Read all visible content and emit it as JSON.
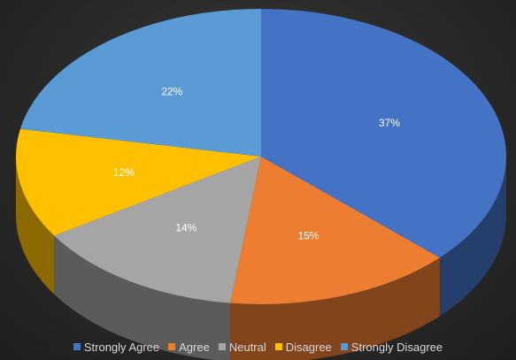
{
  "chart_data": {
    "type": "pie",
    "style": "3d",
    "title": "",
    "categories": [
      "Strongly Agree",
      "Agree",
      "Neutral",
      "Disagree",
      "Strongly Disagree"
    ],
    "values": [
      37,
      15,
      14,
      12,
      22
    ],
    "data_labels": [
      "37%",
      "15%",
      "14%",
      "12%",
      "22%"
    ],
    "colors": [
      "#4472c4",
      "#ed7d31",
      "#a5a5a5",
      "#ffc000",
      "#5b9bd5"
    ],
    "legend_position": "bottom",
    "start_angle_deg": -90,
    "direction": "clockwise"
  },
  "legend": {
    "items": [
      {
        "label": "Strongly Agree",
        "color": "#4472c4"
      },
      {
        "label": "Agree",
        "color": "#ed7d31"
      },
      {
        "label": "Neutral",
        "color": "#a5a5a5"
      },
      {
        "label": "Disagree",
        "color": "#ffc000"
      },
      {
        "label": "Strongly Disagree",
        "color": "#5b9bd5"
      }
    ]
  }
}
